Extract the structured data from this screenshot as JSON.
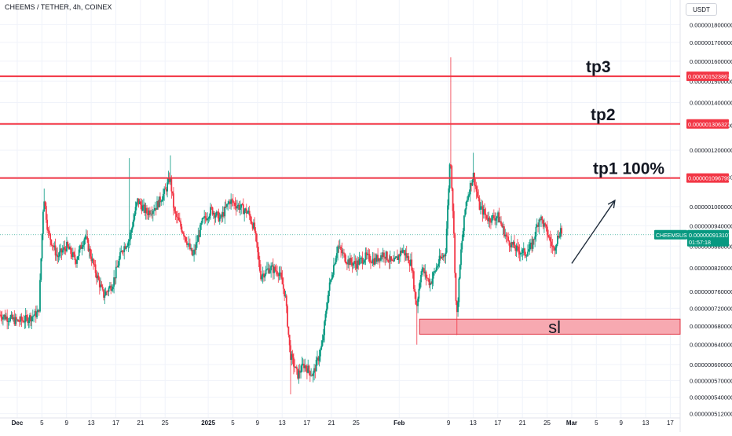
{
  "header": {
    "symbol_title": "CHEEMS / TETHER, 4h, COINEX",
    "quote_unit": "USDT"
  },
  "chart_data": {
    "type": "candlestick",
    "title": "CHEEMS / TETHER, 4h, COINEX",
    "y_scale": "log",
    "ylim": [
      5.05e-07,
      1.95e-06
    ],
    "y_ticks": [
      {
        "value": 1.8e-06,
        "label": "0.000001800000"
      },
      {
        "value": 1.7e-06,
        "label": "0.000001700000"
      },
      {
        "value": 1.6e-06,
        "label": "0.000001600000"
      },
      {
        "value": 1.5e-06,
        "label": "0.000001500000"
      },
      {
        "value": 1.4e-06,
        "label": "0.000001400000"
      },
      {
        "value": 1.3e-06,
        "label": "0.000001300000"
      },
      {
        "value": 1.2e-06,
        "label": "0.000001200000"
      },
      {
        "value": 1.1e-06,
        "label": "0.000001100000"
      },
      {
        "value": 1e-06,
        "label": "0.000001000000"
      },
      {
        "value": 9.4e-07,
        "label": "0.000000940000"
      },
      {
        "value": 8.8e-07,
        "label": "0.000000880000"
      },
      {
        "value": 8.2e-07,
        "label": "0.000000820000"
      },
      {
        "value": 7.6e-07,
        "label": "0.000000760000"
      },
      {
        "value": 7.2e-07,
        "label": "0.000000720000"
      },
      {
        "value": 6.8e-07,
        "label": "0.000000680000"
      },
      {
        "value": 6.4e-07,
        "label": "0.000000640000"
      },
      {
        "value": 6e-07,
        "label": "0.000000600000"
      },
      {
        "value": 5.7e-07,
        "label": "0.000000570000"
      },
      {
        "value": 5.4e-07,
        "label": "0.000000540000"
      },
      {
        "value": 5.12e-07,
        "label": "0.000000512000"
      }
    ],
    "x_ticks": [
      {
        "label": "Dec",
        "day": 0
      },
      {
        "label": "5",
        "day": 4
      },
      {
        "label": "9",
        "day": 8
      },
      {
        "label": "13",
        "day": 12
      },
      {
        "label": "17",
        "day": 16
      },
      {
        "label": "21",
        "day": 20
      },
      {
        "label": "25",
        "day": 24
      },
      {
        "label": "2025",
        "day": 31
      },
      {
        "label": "5",
        "day": 35
      },
      {
        "label": "9",
        "day": 39
      },
      {
        "label": "13",
        "day": 43
      },
      {
        "label": "17",
        "day": 47
      },
      {
        "label": "21",
        "day": 51
      },
      {
        "label": "25",
        "day": 55
      },
      {
        "label": "Feb",
        "day": 62
      },
      {
        "label": "9",
        "day": 70
      },
      {
        "label": "13",
        "day": 74
      },
      {
        "label": "17",
        "day": 78
      },
      {
        "label": "21",
        "day": 82
      },
      {
        "label": "25",
        "day": 86
      },
      {
        "label": "Mar",
        "day": 90
      },
      {
        "label": "5",
        "day": 94
      },
      {
        "label": "9",
        "day": 98
      },
      {
        "label": "13",
        "day": 102
      },
      {
        "label": "17",
        "day": 106
      }
    ],
    "x_label_highlight": [
      "Dec",
      "2025",
      "Feb",
      "Mar"
    ],
    "x_range_days": [
      -2.8,
      107.6
    ],
    "price_path": [
      [
        -2.8,
        7.05e-07
      ],
      [
        0,
        6.9e-07
      ],
      [
        1.5,
        6.95e-07
      ],
      [
        3.5,
        7.1e-07
      ],
      [
        4.3,
        1.04e-06
      ],
      [
        5,
        9.2e-07
      ],
      [
        6.5,
        8.5e-07
      ],
      [
        8,
        8.8e-07
      ],
      [
        9.5,
        8.4e-07
      ],
      [
        11,
        9.1e-07
      ],
      [
        12.5,
        8.2e-07
      ],
      [
        14,
        7.5e-07
      ],
      [
        15.5,
        7.8e-07
      ],
      [
        17,
        8.7e-07
      ],
      [
        18.2,
        9e-07
      ],
      [
        19.5,
        1.02e-06
      ],
      [
        21,
        9.8e-07
      ],
      [
        22.5,
        1e-06
      ],
      [
        24,
        1.05e-06
      ],
      [
        24.8,
        1.1e-06
      ],
      [
        25.5,
        9.8e-07
      ],
      [
        27,
        9.2e-07
      ],
      [
        28.5,
        8.5e-07
      ],
      [
        30,
        9.5e-07
      ],
      [
        31.5,
        9.9e-07
      ],
      [
        33,
        9.6e-07
      ],
      [
        34.5,
        1.02e-06
      ],
      [
        36,
        1e-06
      ],
      [
        37.5,
        9.8e-07
      ],
      [
        38.5,
        9.3e-07
      ],
      [
        39.5,
        8e-07
      ],
      [
        41,
        8.2e-07
      ],
      [
        42.5,
        8.1e-07
      ],
      [
        43.5,
        7.5e-07
      ],
      [
        44.3,
        6.2e-07
      ],
      [
        45.5,
        5.8e-07
      ],
      [
        46.5,
        6e-07
      ],
      [
        48,
        5.8e-07
      ],
      [
        49.5,
        6.4e-07
      ],
      [
        50.5,
        7.6e-07
      ],
      [
        52,
        8.8e-07
      ],
      [
        53.5,
        8.4e-07
      ],
      [
        55,
        8.3e-07
      ],
      [
        56.5,
        8.5e-07
      ],
      [
        58,
        8.4e-07
      ],
      [
        59.5,
        8.6e-07
      ],
      [
        61,
        8.3e-07
      ],
      [
        62.5,
        8.7e-07
      ],
      [
        64,
        8.3e-07
      ],
      [
        64.8,
        7.2e-07
      ],
      [
        65.6,
        8.2e-07
      ],
      [
        67,
        7.8e-07
      ],
      [
        68.5,
        8.4e-07
      ],
      [
        69.5,
        8.6e-07
      ],
      [
        70.3,
        1.19e-06
      ],
      [
        70.8,
        9.5e-07
      ],
      [
        71.3,
        6.9e-07
      ],
      [
        72,
        8.6e-07
      ],
      [
        72.8,
        1.01e-06
      ],
      [
        74,
        1.11e-06
      ],
      [
        75,
        1e-06
      ],
      [
        76.5,
        9.6e-07
      ],
      [
        78,
        9.7e-07
      ],
      [
        79.5,
        9e-07
      ],
      [
        81,
        8.7e-07
      ],
      [
        82.5,
        8.6e-07
      ],
      [
        83.5,
        8.8e-07
      ],
      [
        84.8,
        9.7e-07
      ],
      [
        86,
        9.2e-07
      ],
      [
        87,
        8.7e-07
      ],
      [
        88.2,
        9.3e-07
      ],
      [
        88.5,
        9.13e-07
      ]
    ],
    "candle_wicks": [
      {
        "day": 4.3,
        "high": 1.06e-06
      },
      {
        "day": 18.2,
        "high": 1.17e-06
      },
      {
        "day": 24.8,
        "high": 1.18e-06
      },
      {
        "day": 44.3,
        "low": 5.45e-07
      },
      {
        "day": 64.8,
        "low": 6.4e-07
      },
      {
        "day": 70.3,
        "high": 1.62e-06
      },
      {
        "day": 71.3,
        "low": 6.6e-07
      },
      {
        "day": 74,
        "high": 1.19e-06
      }
    ],
    "level_lines": [
      {
        "name": "tp3",
        "label": "tp3",
        "value": 1.523867e-06,
        "value_label": "0.000001523867",
        "color": "#f23645"
      },
      {
        "name": "tp2",
        "label": "tp2",
        "value": 1.306327e-06,
        "value_label": "0.000001306327",
        "color": "#f23645"
      },
      {
        "name": "tp1",
        "label": "tp1   100%",
        "value": 1.096799e-06,
        "value_label": "0.000001096799",
        "color": "#f23645"
      }
    ],
    "current_price": {
      "symbol": "CHEEMSUSDT",
      "value": 9.13107e-07,
      "value_label": "0.000000913107",
      "countdown": "01:57:18",
      "color": "#089981"
    },
    "stop_loss_zone": {
      "label": "sl",
      "day_start": 65.3,
      "day_end": 107.6,
      "price_low": 6.62e-07,
      "price_high": 6.95e-07,
      "fill": "#f7a9b1",
      "border": "#e03444"
    },
    "projection_arrow": {
      "from_day": 90,
      "from_price": 8.32e-07,
      "to_day": 97,
      "to_price": 1.02e-06,
      "color": "#1e2b3a"
    },
    "colors": {
      "up": "#089981",
      "down": "#f23645",
      "axis_text": "#131722",
      "grid": "#f0f3fa",
      "highlight_tick": "#131722"
    }
  }
}
